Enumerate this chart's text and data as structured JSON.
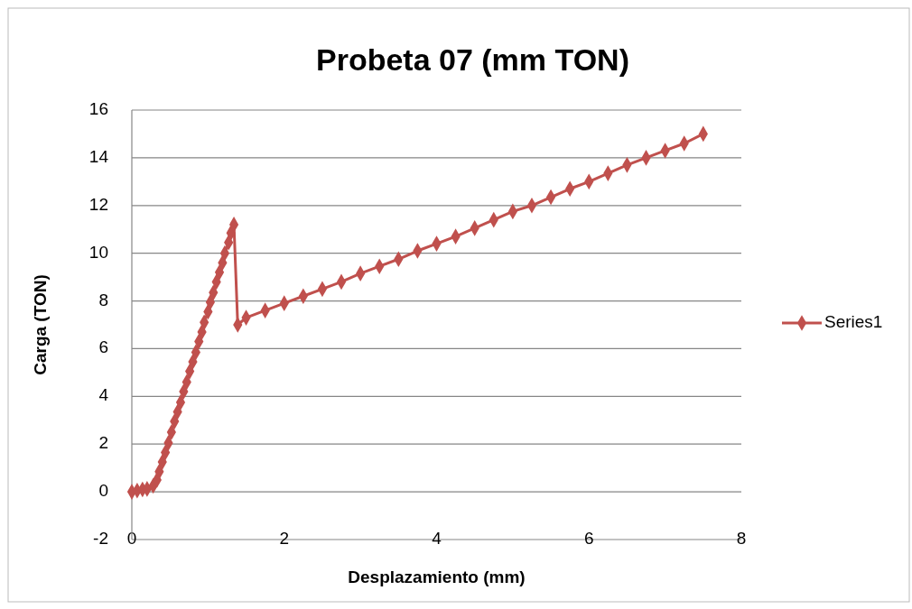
{
  "chart_data": {
    "type": "line",
    "title": "Probeta 07 (mm TON)",
    "xlabel": "Desplazamiento (mm)",
    "ylabel": "Carga (TON)",
    "xlim": [
      0,
      8
    ],
    "xticks": [
      0,
      2,
      4,
      6,
      8
    ],
    "ylim": [
      -2,
      16
    ],
    "yticks": [
      -2,
      0,
      2,
      4,
      6,
      8,
      10,
      12,
      14,
      16
    ],
    "grid": "y",
    "legend": "right",
    "marker": "diamond",
    "line_style": "solid",
    "series": [
      {
        "name": "Series1",
        "color": "#c0504d",
        "x": [
          0,
          0.07,
          0.14,
          0.2,
          0.28,
          0.33,
          0.36,
          0.4,
          0.44,
          0.48,
          0.52,
          0.56,
          0.6,
          0.64,
          0.68,
          0.72,
          0.76,
          0.8,
          0.84,
          0.88,
          0.92,
          0.95,
          1.0,
          1.03,
          1.07,
          1.11,
          1.15,
          1.19,
          1.22,
          1.27,
          1.3,
          1.34,
          1.39,
          1.5,
          1.75,
          2.0,
          2.25,
          2.5,
          2.75,
          3.0,
          3.25,
          3.5,
          3.75,
          4.0,
          4.25,
          4.5,
          4.75,
          5.0,
          5.25,
          5.5,
          5.75,
          6.0,
          6.25,
          6.5,
          6.75,
          7.0,
          7.25,
          7.5
        ],
        "values": [
          0,
          0.05,
          0.1,
          0.12,
          0.25,
          0.5,
          0.85,
          1.25,
          1.65,
          2.05,
          2.5,
          2.95,
          3.35,
          3.75,
          4.2,
          4.6,
          5.05,
          5.45,
          5.85,
          6.3,
          6.7,
          7.1,
          7.55,
          7.95,
          8.35,
          8.8,
          9.2,
          9.6,
          10.0,
          10.45,
          10.85,
          11.2,
          7.0,
          7.3,
          7.6,
          7.9,
          8.2,
          8.5,
          8.8,
          9.15,
          9.45,
          9.75,
          10.1,
          10.4,
          10.7,
          11.05,
          11.4,
          11.75,
          12.0,
          12.35,
          12.7,
          13.0,
          13.35,
          13.7,
          14.0,
          14.3,
          14.6,
          15.0
        ]
      }
    ]
  }
}
